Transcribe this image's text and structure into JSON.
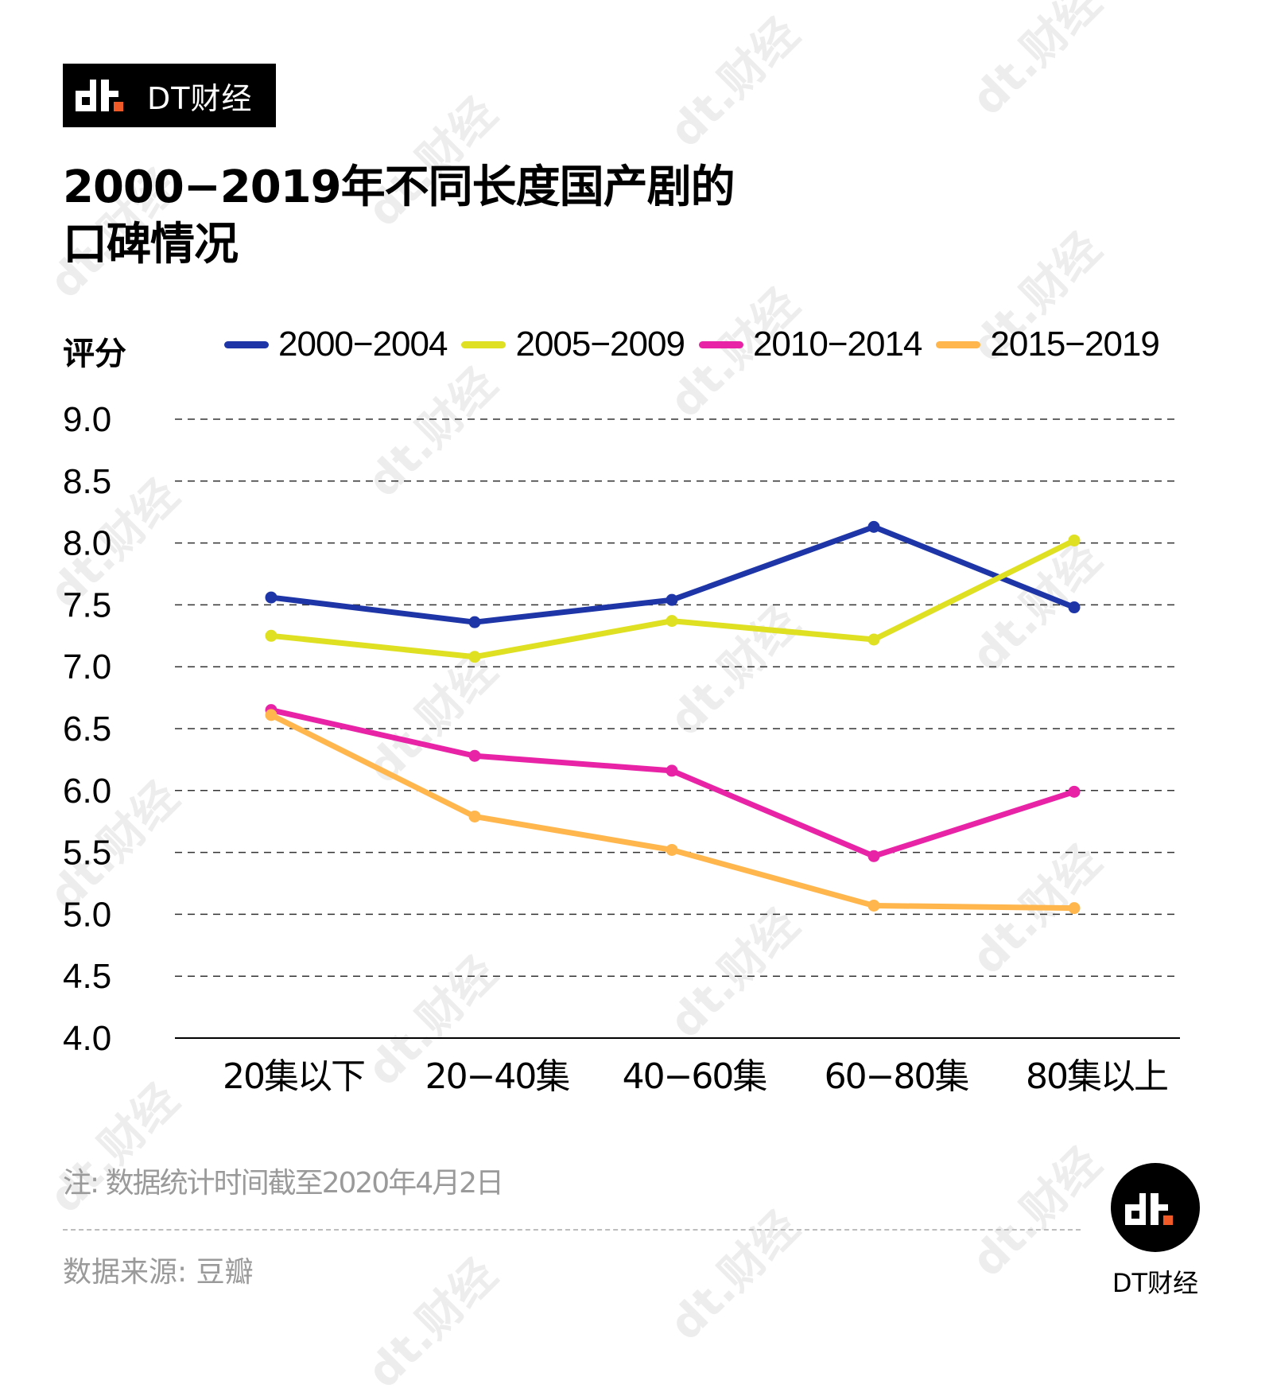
{
  "brand": {
    "name": "DT财经",
    "accent_color": "#f05a28"
  },
  "title": {
    "line1": "2000−2019年不同长度国产剧的",
    "line2": "口碑情况"
  },
  "watermark_text": "dt.财经",
  "chart_data": {
    "type": "line",
    "title": "2000−2019年不同长度国产剧的口碑情况",
    "xlabel": "",
    "ylabel": "评分",
    "categories": [
      "20集以下",
      "20−40集",
      "40−60集",
      "60−80集",
      "80集以上"
    ],
    "ylim": [
      4.0,
      9.0
    ],
    "yticks": [
      "9.0",
      "8.5",
      "8.0",
      "7.5",
      "7.0",
      "6.5",
      "6.0",
      "5.5",
      "5.0",
      "4.5",
      "4.0"
    ],
    "ytick_values": [
      9.0,
      8.5,
      8.0,
      7.5,
      7.0,
      6.5,
      6.0,
      5.5,
      5.0,
      4.5,
      4.0
    ],
    "grid": true,
    "legend_position": "top",
    "series": [
      {
        "name": "2000−2004",
        "color": "#1e35a8",
        "values": [
          7.56,
          7.36,
          7.54,
          8.13,
          7.48
        ]
      },
      {
        "name": "2005−2009",
        "color": "#dee021",
        "values": [
          7.25,
          7.08,
          7.37,
          7.22,
          8.02
        ]
      },
      {
        "name": "2010−2014",
        "color": "#e823a6",
        "values": [
          6.65,
          6.28,
          6.16,
          5.47,
          5.99
        ]
      },
      {
        "name": "2015−2019",
        "color": "#ffb74d",
        "values": [
          6.61,
          5.79,
          5.52,
          5.07,
          5.05
        ]
      }
    ]
  },
  "footer": {
    "note": "注: 数据统计时间截至2020年4月2日",
    "source": "数据来源: 豆瓣"
  }
}
